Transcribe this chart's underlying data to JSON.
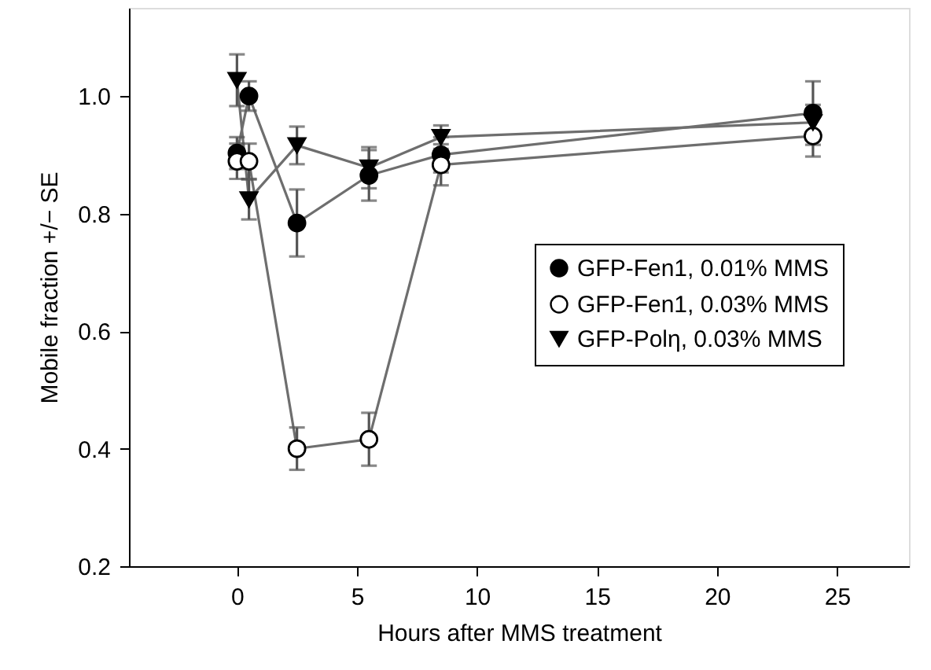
{
  "chart_data": {
    "type": "line",
    "xlabel": "Hours after MMS treatment",
    "ylabel": "Mobile fraction +/− SE",
    "x": [
      0,
      0.5,
      2.5,
      5.5,
      8.5,
      24
    ],
    "series": [
      {
        "name": "GFP-Fen1, 0.01% MMS",
        "color": "#000000",
        "marker": "circle",
        "values": [
          0.903,
          1.0,
          0.784,
          0.865,
          0.9,
          0.971
        ],
        "errors": [
          0.027,
          0.025,
          0.057,
          0.043,
          0.03,
          0.054
        ]
      },
      {
        "name": "GFP-Fen1, 0.03% MMS",
        "color": "#ffffff",
        "marker": "circle",
        "values": [
          0.889,
          0.889,
          0.4,
          0.416,
          0.883,
          0.932
        ],
        "errors": [
          0.03,
          0.03,
          0.036,
          0.045,
          0.035,
          0.035
        ]
      },
      {
        "name": "GFP-Polη, 0.03% MMS",
        "color": "#000000",
        "marker": "triangle",
        "values": [
          1.027,
          0.824,
          0.916,
          0.878,
          0.93,
          0.955
        ],
        "errors": [
          0.044,
          0.034,
          0.032,
          0.035,
          0.02,
          0.03
        ]
      }
    ],
    "xlim": [
      -4.5,
      28
    ],
    "xticks": [
      0,
      5,
      10,
      15,
      20,
      25
    ],
    "ylim": [
      0.2,
      1.15
    ],
    "yticks": [
      0.2,
      0.4,
      0.6,
      0.8,
      {
        "value": 1,
        "label": "1.0"
      }
    ],
    "grid": false,
    "legend": "right",
    "line_style": "solid"
  }
}
